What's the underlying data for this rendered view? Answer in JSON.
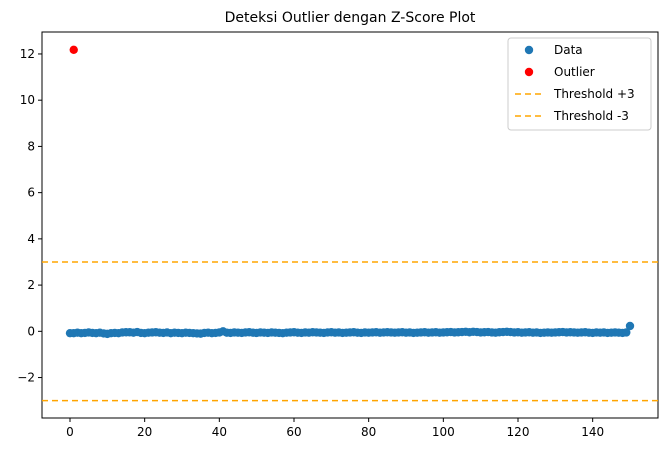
{
  "chart_data": {
    "type": "scatter",
    "title": "Deteksi Outlier dengan Z-Score Plot",
    "xlabel": "",
    "ylabel": "",
    "xlim": [
      -7.5,
      157.5
    ],
    "ylim": [
      -3.75,
      12.95
    ],
    "xticks": [
      0,
      20,
      40,
      60,
      80,
      100,
      120,
      140
    ],
    "yticks": [
      -2,
      0,
      2,
      4,
      6,
      8,
      10,
      12
    ],
    "grid": false,
    "legend_position": "top-right",
    "series": [
      {
        "name": "Data",
        "kind": "points",
        "color": "#1f77b4",
        "x_start": 0,
        "x_step": 1,
        "y": [
          -0.08,
          -0.08,
          -0.06,
          -0.08,
          -0.07,
          -0.05,
          -0.07,
          -0.08,
          -0.06,
          -0.09,
          -0.11,
          -0.08,
          -0.07,
          -0.08,
          -0.05,
          -0.04,
          -0.04,
          -0.06,
          -0.03,
          -0.07,
          -0.08,
          -0.06,
          -0.05,
          -0.04,
          -0.06,
          -0.07,
          -0.05,
          -0.08,
          -0.06,
          -0.07,
          -0.08,
          -0.06,
          -0.07,
          -0.08,
          -0.09,
          -0.1,
          -0.07,
          -0.06,
          -0.08,
          -0.07,
          -0.05,
          0.0,
          -0.06,
          -0.07,
          -0.05,
          -0.06,
          -0.07,
          -0.05,
          -0.04,
          -0.06,
          -0.07,
          -0.05,
          -0.06,
          -0.07,
          -0.05,
          -0.06,
          -0.07,
          -0.08,
          -0.06,
          -0.05,
          -0.04,
          -0.06,
          -0.07,
          -0.05,
          -0.06,
          -0.04,
          -0.05,
          -0.06,
          -0.07,
          -0.05,
          -0.04,
          -0.06,
          -0.05,
          -0.07,
          -0.06,
          -0.05,
          -0.04,
          -0.06,
          -0.07,
          -0.05,
          -0.06,
          -0.05,
          -0.04,
          -0.06,
          -0.05,
          -0.04,
          -0.05,
          -0.06,
          -0.05,
          -0.04,
          -0.06,
          -0.05,
          -0.07,
          -0.06,
          -0.05,
          -0.04,
          -0.06,
          -0.05,
          -0.04,
          -0.06,
          -0.05,
          -0.04,
          -0.03,
          -0.05,
          -0.04,
          -0.03,
          -0.02,
          -0.04,
          -0.02,
          -0.03,
          -0.05,
          -0.04,
          -0.03,
          -0.05,
          -0.06,
          -0.04,
          -0.03,
          -0.02,
          -0.03,
          -0.05,
          -0.04,
          -0.06,
          -0.05,
          -0.04,
          -0.06,
          -0.05,
          -0.07,
          -0.06,
          -0.05,
          -0.06,
          -0.05,
          -0.04,
          -0.03,
          -0.05,
          -0.04,
          -0.05,
          -0.06,
          -0.05,
          -0.04,
          -0.06,
          -0.07,
          -0.05,
          -0.06,
          -0.05,
          -0.07,
          -0.06,
          -0.05,
          -0.06,
          -0.07,
          -0.05,
          0.23
        ]
      },
      {
        "name": "Outlier",
        "kind": "points",
        "color": "#ff0000",
        "points": [
          {
            "x": 1,
            "y": 12.18
          }
        ]
      },
      {
        "name": "Threshold +3",
        "kind": "hline",
        "color": "#ffa500",
        "dash": "dashed",
        "y": 3
      },
      {
        "name": "Threshold -3",
        "kind": "hline",
        "color": "#ffa500",
        "dash": "dashed",
        "y": -3
      }
    ]
  }
}
